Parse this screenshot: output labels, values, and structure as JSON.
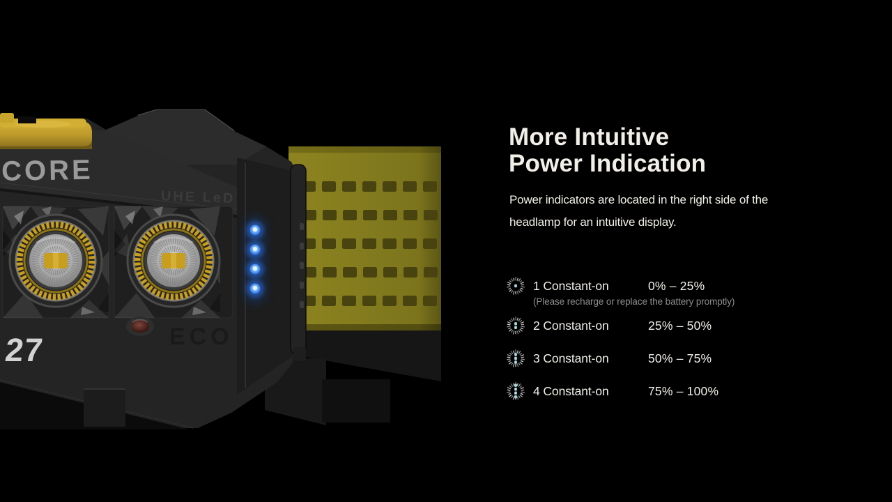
{
  "theme": {
    "background": "#000000",
    "text_color": "#f2efe9",
    "note_color": "#8f8f8f",
    "indicator_cyan": "#a5dde2",
    "led_blue": "#4f9dfc",
    "strap_yellow": "#8d8420",
    "button_yellow": "#c7a52c",
    "lens_yellow": "#c79e1d"
  },
  "hero": {
    "brand_text": "CORE",
    "led_type_text": "UHE LeD",
    "model_text": "27",
    "ghost_text": "ECO",
    "power_led_count": 4
  },
  "content": {
    "title_line1": "More Intuitive",
    "title_line2": "Power Indication",
    "description_line1": "Power indicators are located in the right side of the",
    "description_line2": "headlamp for an intuitive display.",
    "levels": [
      {
        "label": "1 Constant-on",
        "range": "0% – 25%",
        "dots": 1,
        "note": "(Please recharge or replace the battery promptly)"
      },
      {
        "label": "2 Constant-on",
        "range": "25% – 50%",
        "dots": 2
      },
      {
        "label": "3 Constant-on",
        "range": "50% – 75%",
        "dots": 3
      },
      {
        "label": "4 Constant-on",
        "range": "75% – 100%",
        "dots": 4
      }
    ]
  }
}
